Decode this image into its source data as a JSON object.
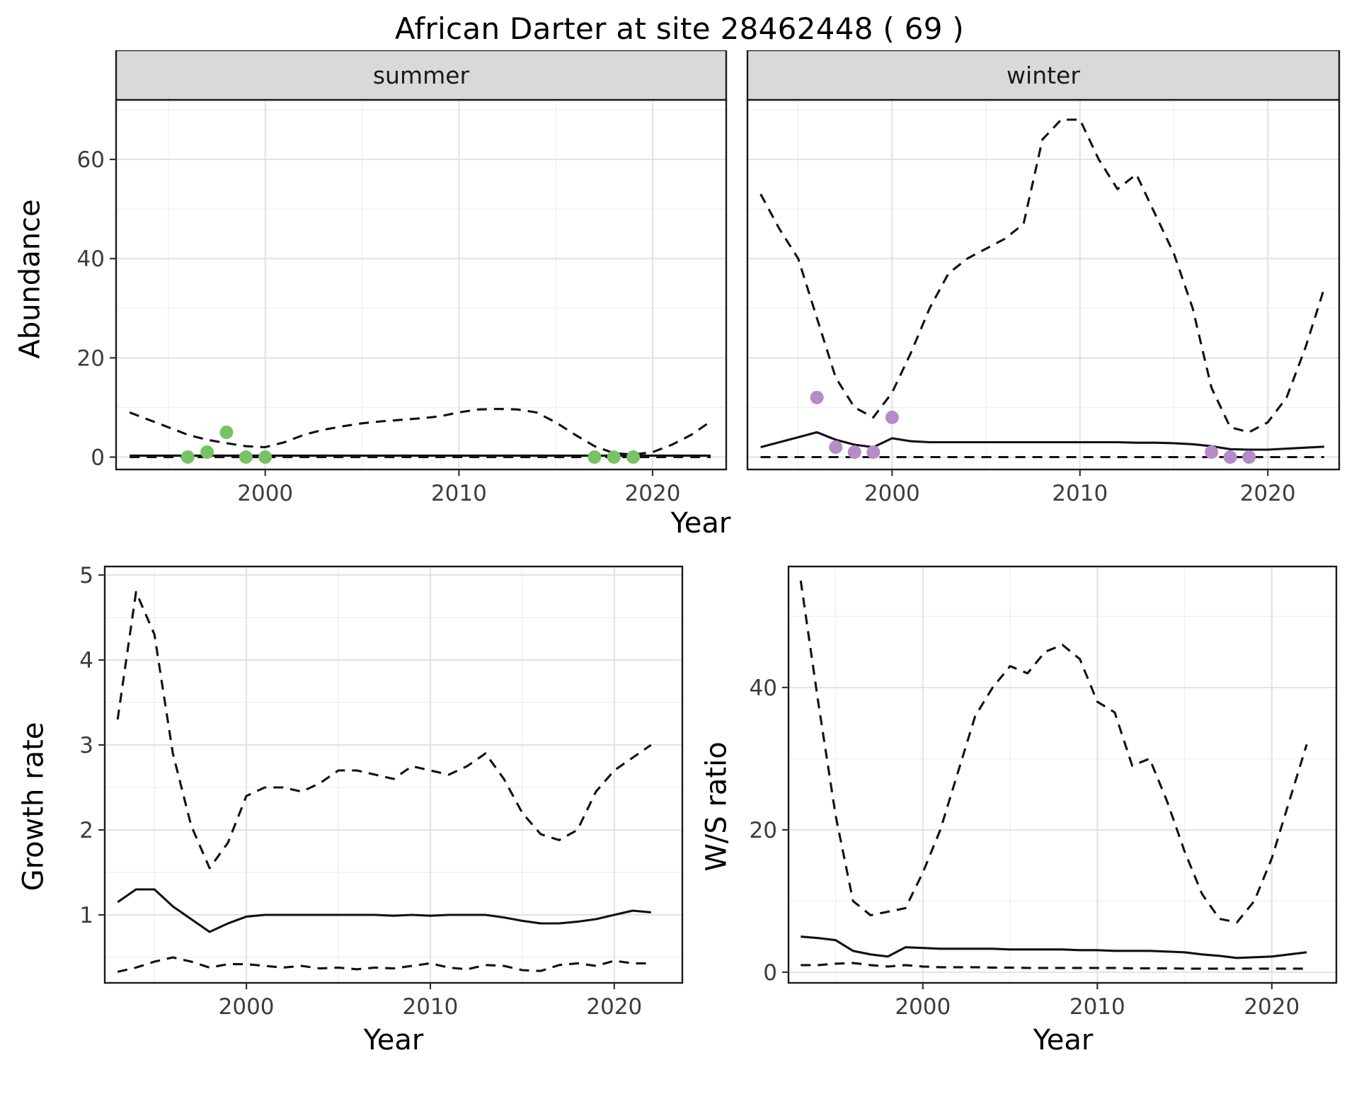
{
  "title": "African Darter at site 28462448 ( 69 )",
  "axis": {
    "y_label_abundance": "Abundance",
    "y_label_growth": "Growth rate",
    "y_label_ws": "W/S ratio",
    "x_label_top": "Year",
    "x_label_bottom_left": "Year",
    "x_label_bottom_right": "Year"
  },
  "facets": {
    "summer": "summer",
    "winter": "winter"
  },
  "style": {
    "strip_bg": "#d9d9d9",
    "grid_major": "#e2e2e2",
    "grid_minor": "#f0f0f0",
    "border": "#1a1a1a",
    "line": "#111111",
    "tick_text": "#3c3c3c",
    "summer_point": "#76c265",
    "winter_point": "#b48cc8"
  },
  "chart_data": [
    {
      "id": "abundance_summer",
      "type": "line",
      "facet_label": "summer",
      "ylabel": "Abundance",
      "xlabel": "Year",
      "xlim": [
        1992.3,
        2023.8
      ],
      "ylim": [
        -2.5,
        72
      ],
      "xticks": [
        2000,
        2010,
        2020
      ],
      "yticks": [
        0,
        20,
        40,
        60
      ],
      "x": [
        1993,
        1994,
        1995,
        1996,
        1997,
        1998,
        1999,
        2000,
        2001,
        2002,
        2003,
        2004,
        2005,
        2006,
        2007,
        2008,
        2009,
        2010,
        2011,
        2012,
        2013,
        2014,
        2015,
        2016,
        2017,
        2018,
        2019,
        2020,
        2021,
        2022,
        2023
      ],
      "series": [
        {
          "name": "estimate",
          "style": "solid",
          "values": [
            0.3,
            0.3,
            0.3,
            0.3,
            0.3,
            0.3,
            0.3,
            0.3,
            0.3,
            0.3,
            0.3,
            0.3,
            0.3,
            0.3,
            0.3,
            0.3,
            0.3,
            0.3,
            0.3,
            0.3,
            0.3,
            0.3,
            0.3,
            0.3,
            0.3,
            0.3,
            0.3,
            0.3,
            0.3,
            0.3,
            0.3
          ]
        },
        {
          "name": "upper_ci",
          "style": "dashed",
          "values": [
            9,
            7.5,
            6,
            4.5,
            3.5,
            2.8,
            2.2,
            2,
            3,
            4.5,
            5.5,
            6.2,
            6.8,
            7.2,
            7.5,
            7.8,
            8.2,
            9,
            9.6,
            9.7,
            9.6,
            9,
            7,
            4.5,
            2.2,
            0.8,
            0.5,
            1,
            2.5,
            4.5,
            7.2
          ]
        },
        {
          "name": "lower_ci",
          "style": "dashed",
          "values": [
            0,
            0,
            0,
            0,
            0,
            0,
            0,
            0,
            0,
            0,
            0,
            0,
            0,
            0,
            0,
            0,
            0,
            0,
            0,
            0,
            0,
            0,
            0,
            0,
            0,
            0,
            0,
            0,
            0,
            0,
            0
          ]
        }
      ],
      "points": {
        "name": "observed_counts",
        "color": "#76c265",
        "x": [
          1996,
          1997,
          1998,
          1999,
          2000,
          2017,
          2018,
          2019
        ],
        "y": [
          0,
          1,
          5,
          0,
          0,
          0,
          0,
          0
        ]
      }
    },
    {
      "id": "abundance_winter",
      "type": "line",
      "facet_label": "winter",
      "ylabel": "Abundance",
      "xlabel": "Year",
      "xlim": [
        1992.3,
        2023.8
      ],
      "ylim": [
        -2.5,
        72
      ],
      "xticks": [
        2000,
        2010,
        2020
      ],
      "yticks": [
        0,
        20,
        40,
        60
      ],
      "x": [
        1993,
        1994,
        1995,
        1996,
        1997,
        1998,
        1999,
        2000,
        2001,
        2002,
        2003,
        2004,
        2005,
        2006,
        2007,
        2008,
        2009,
        2010,
        2011,
        2012,
        2013,
        2014,
        2015,
        2016,
        2017,
        2018,
        2019,
        2020,
        2021,
        2022,
        2023
      ],
      "series": [
        {
          "name": "estimate",
          "style": "solid",
          "values": [
            2,
            3,
            4,
            5,
            3.5,
            2.5,
            2,
            3.8,
            3.2,
            3,
            3,
            3,
            3,
            3,
            3,
            3,
            3,
            3,
            3,
            3,
            2.9,
            2.9,
            2.8,
            2.6,
            2.2,
            1.6,
            1.5,
            1.5,
            1.7,
            1.9,
            2.1
          ]
        },
        {
          "name": "upper_ci",
          "style": "dashed",
          "values": [
            53,
            46,
            40,
            28,
            16,
            10,
            8,
            13,
            21,
            30,
            37,
            40,
            42,
            44,
            47,
            64,
            68,
            68,
            60,
            54,
            57,
            49,
            41,
            30,
            14,
            6,
            5,
            7,
            12,
            22,
            34
          ]
        },
        {
          "name": "lower_ci",
          "style": "dashed",
          "values": [
            0,
            0,
            0,
            0,
            0,
            0,
            0,
            0,
            0,
            0,
            0,
            0,
            0,
            0,
            0,
            0,
            0,
            0,
            0,
            0,
            0,
            0,
            0,
            0,
            0,
            0,
            0,
            0,
            0,
            0,
            0
          ]
        }
      ],
      "points": {
        "name": "observed_counts",
        "color": "#b48cc8",
        "x": [
          1996,
          1997,
          1998,
          1999,
          2000,
          2017,
          2018,
          2019
        ],
        "y": [
          12,
          2,
          1,
          1,
          8,
          1,
          0,
          0
        ]
      }
    },
    {
      "id": "growth_rate",
      "type": "line",
      "facet_label": "",
      "ylabel": "Growth rate",
      "xlabel": "Year",
      "xlim": [
        1992.3,
        2023.7
      ],
      "ylim": [
        0.2,
        5.1
      ],
      "xticks": [
        2000,
        2010,
        2020
      ],
      "yticks": [
        1,
        2,
        3,
        4,
        5
      ],
      "x": [
        1993,
        1994,
        1995,
        1996,
        1997,
        1998,
        1999,
        2000,
        2001,
        2002,
        2003,
        2004,
        2005,
        2006,
        2007,
        2008,
        2009,
        2010,
        2011,
        2012,
        2013,
        2014,
        2015,
        2016,
        2017,
        2018,
        2019,
        2020,
        2021,
        2022
      ],
      "series": [
        {
          "name": "estimate",
          "style": "solid",
          "values": [
            1.15,
            1.3,
            1.3,
            1.1,
            0.95,
            0.8,
            0.9,
            0.98,
            1,
            1,
            1,
            1,
            1,
            1,
            1,
            0.99,
            1,
            0.99,
            1,
            1,
            1,
            0.97,
            0.93,
            0.9,
            0.9,
            0.92,
            0.95,
            1,
            1.05,
            1.03
          ]
        },
        {
          "name": "upper_ci",
          "style": "dashed",
          "values": [
            3.3,
            4.8,
            4.3,
            2.9,
            2.05,
            1.55,
            1.85,
            2.4,
            2.5,
            2.5,
            2.45,
            2.55,
            2.7,
            2.7,
            2.65,
            2.6,
            2.75,
            2.7,
            2.65,
            2.75,
            2.9,
            2.6,
            2.2,
            1.95,
            1.88,
            2.0,
            2.45,
            2.7,
            2.85,
            3.0
          ]
        },
        {
          "name": "lower_ci",
          "style": "dashed",
          "values": [
            0.33,
            0.38,
            0.45,
            0.5,
            0.45,
            0.38,
            0.42,
            0.42,
            0.4,
            0.38,
            0.4,
            0.37,
            0.38,
            0.36,
            0.38,
            0.37,
            0.4,
            0.43,
            0.38,
            0.36,
            0.41,
            0.4,
            0.35,
            0.34,
            0.41,
            0.43,
            0.4,
            0.46,
            0.43,
            0.43
          ]
        }
      ]
    },
    {
      "id": "ws_ratio",
      "type": "line",
      "facet_label": "",
      "ylabel": "W/S ratio",
      "xlabel": "Year",
      "xlim": [
        1992.3,
        2023.7
      ],
      "ylim": [
        -1.5,
        57
      ],
      "xticks": [
        2000,
        2010,
        2020
      ],
      "yticks": [
        0,
        20,
        40
      ],
      "x": [
        1993,
        1994,
        1995,
        1996,
        1997,
        1998,
        1999,
        2000,
        2001,
        2002,
        2003,
        2004,
        2005,
        2006,
        2007,
        2008,
        2009,
        2010,
        2011,
        2012,
        2013,
        2014,
        2015,
        2016,
        2017,
        2018,
        2019,
        2020,
        2021,
        2022
      ],
      "series": [
        {
          "name": "estimate",
          "style": "solid",
          "values": [
            5,
            4.8,
            4.5,
            3,
            2.5,
            2.2,
            3.5,
            3.4,
            3.3,
            3.3,
            3.3,
            3.3,
            3.2,
            3.2,
            3.2,
            3.2,
            3.1,
            3.1,
            3,
            3,
            3,
            2.9,
            2.8,
            2.5,
            2.3,
            2,
            2.1,
            2.2,
            2.5,
            2.8
          ]
        },
        {
          "name": "upper_ci",
          "style": "dashed",
          "values": [
            55,
            38,
            22,
            10,
            8,
            8.5,
            9,
            14,
            20,
            28,
            36,
            40,
            43,
            42,
            45,
            46,
            44,
            38,
            36.5,
            29,
            30,
            24,
            17,
            11,
            7.5,
            7,
            10,
            16,
            24,
            32
          ]
        },
        {
          "name": "lower_ci",
          "style": "dashed",
          "values": [
            1,
            1,
            1.2,
            1.3,
            1,
            0.8,
            1,
            0.8,
            0.7,
            0.7,
            0.7,
            0.65,
            0.65,
            0.6,
            0.6,
            0.6,
            0.6,
            0.6,
            0.6,
            0.55,
            0.55,
            0.55,
            0.5,
            0.5,
            0.5,
            0.5,
            0.5,
            0.5,
            0.5,
            0.5
          ]
        }
      ]
    }
  ]
}
